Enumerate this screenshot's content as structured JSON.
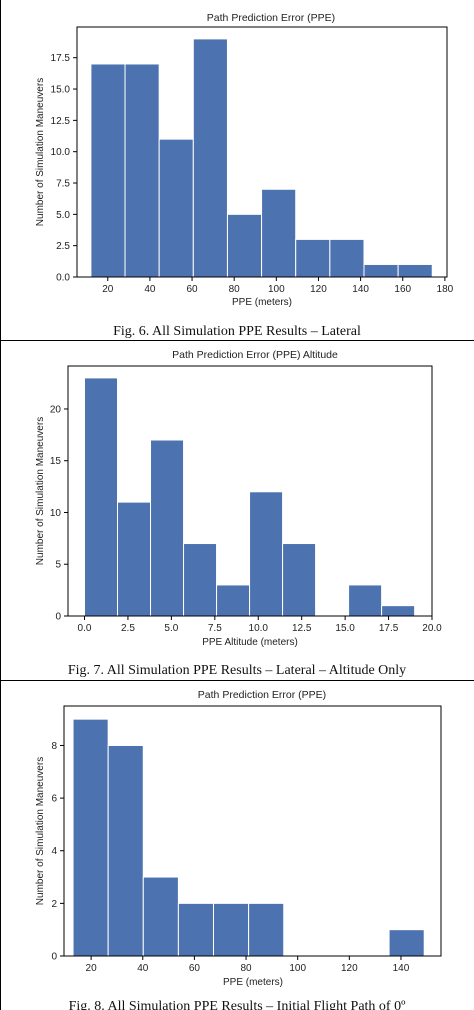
{
  "captions": [
    "Fig. 6. All Simulation PPE Results – Lateral",
    "Fig. 7. All Simulation PPE Results – Lateral – Altitude Only",
    "Fig. 8. All Simulation PPE Results – Initial Flight Path of 0º"
  ],
  "colors": {
    "bar": "#4c72b0"
  },
  "chart_data": [
    {
      "type": "bar",
      "title": "Path Prediction Error (PPE)",
      "xlabel": "PPE (meters)",
      "ylabel": "Number of Simulation Maneuvers",
      "xlim": [
        5.4,
        181
      ],
      "ylim": [
        0,
        19.95
      ],
      "xticks": [
        20,
        40,
        60,
        80,
        100,
        120,
        140,
        160,
        180
      ],
      "yticks": [
        0.0,
        2.5,
        5.0,
        7.5,
        10.0,
        12.5,
        15.0,
        17.5
      ],
      "ytick_labels": [
        "0.0",
        "2.5",
        "5.0",
        "7.5",
        "10.0",
        "12.5",
        "15.0",
        "17.5"
      ],
      "bin_edges": [
        12,
        28.2,
        44.4,
        60.6,
        76.8,
        93.0,
        109.2,
        125.4,
        141.6,
        157.8,
        174
      ],
      "values": [
        17,
        17,
        11,
        19,
        5,
        7,
        3,
        3,
        1,
        1
      ]
    },
    {
      "type": "bar",
      "title": "Path Prediction Error (PPE) Altitude",
      "xlabel": "PPE Altitude (meters)",
      "ylabel": "Number of Simulation Maneuvers",
      "xlim": [
        -0.95,
        20
      ],
      "ylim": [
        0,
        24.15
      ],
      "xticks": [
        0.0,
        2.5,
        5.0,
        7.5,
        10.0,
        12.5,
        15.0,
        17.5,
        20.0
      ],
      "xtick_labels": [
        "0.0",
        "2.5",
        "5.0",
        "7.5",
        "10.0",
        "12.5",
        "15.0",
        "17.5",
        "20.0"
      ],
      "yticks": [
        0,
        5,
        10,
        15,
        20
      ],
      "bin_edges": [
        0,
        1.9,
        3.8,
        5.7,
        7.6,
        9.5,
        11.4,
        13.3,
        15.2,
        17.1,
        19.0
      ],
      "values": [
        23,
        11,
        17,
        7,
        3,
        12,
        7,
        0,
        3,
        1
      ]
    },
    {
      "type": "bar",
      "title": "Path Prediction Error (PPE)",
      "xlabel": "PPE (meters)",
      "ylabel": "Number of Simulation Maneuvers",
      "xlim": [
        9.5,
        155.5
      ],
      "ylim": [
        0,
        9.5
      ],
      "xticks": [
        20,
        40,
        60,
        80,
        100,
        120,
        140
      ],
      "yticks": [
        0,
        2,
        4,
        6,
        8
      ],
      "bin_edges": [
        13,
        26.6,
        40.2,
        53.8,
        67.4,
        81.0,
        94.6,
        108.2,
        121.8,
        135.4,
        149
      ],
      "values": [
        9,
        8,
        3,
        2,
        2,
        2,
        0,
        0,
        0,
        1
      ]
    }
  ]
}
